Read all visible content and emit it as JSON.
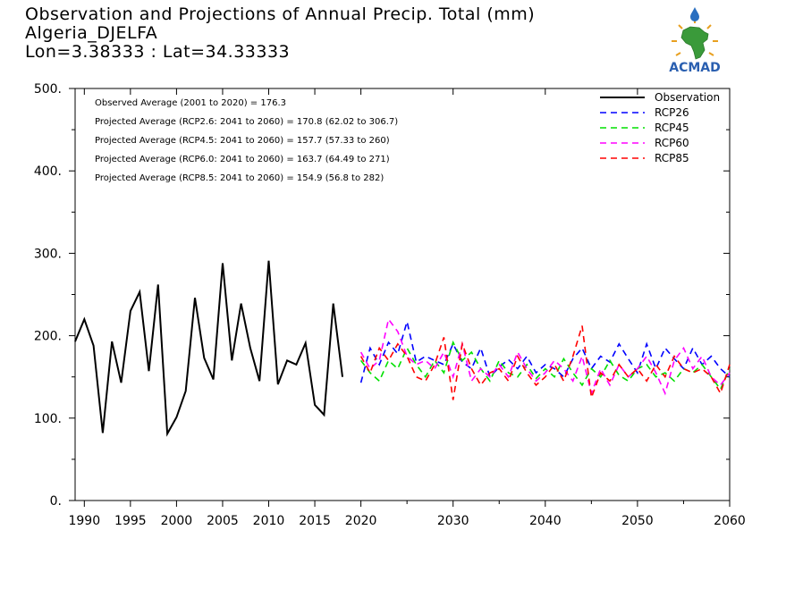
{
  "title": {
    "line1": "Observation and Projections of Annual Precip. Total (mm)",
    "line2": "Algeria_DJELFA",
    "line3": "Lon=3.38333 : Lat=34.33333"
  },
  "logo": {
    "text": "ACMAD"
  },
  "colors": {
    "Observation": "#000000",
    "RCP26": "#0000ff",
    "RCP45": "#00e000",
    "RCP60": "#ff00ff",
    "RCP85": "#ff0000"
  },
  "chart_data": {
    "type": "line",
    "xlim": [
      1989,
      2060
    ],
    "ylim": [
      0,
      500
    ],
    "x_ticks": [
      1990,
      1995,
      2000,
      2005,
      2010,
      2015,
      2020,
      2030,
      2040,
      2050,
      2060
    ],
    "y_ticks": [
      0,
      100,
      200,
      300,
      400,
      500
    ],
    "y_tick_labels": [
      "0.",
      "100.",
      "200.",
      "300.",
      "400.",
      "500."
    ],
    "annotations": [
      "Observed Average (2001 to 2020) = 176.3",
      "Projected Average (RCP2.6: 2041 to 2060) = 170.8 (62.02 to 306.7)",
      "Projected Average (RCP4.5: 2041 to 2060) = 157.7 (57.33 to 260)",
      "Projected Average (RCP6.0: 2041 to 2060) = 163.7 (64.49 to 271)",
      "Projected Average (RCP8.5: 2041 to 2060) = 154.9 (56.8 to 282)"
    ],
    "legend_position": "top-right",
    "series": [
      {
        "name": "Observation",
        "style": "solid",
        "x": [
          1989,
          1990,
          1991,
          1992,
          1993,
          1994,
          1995,
          1996,
          1997,
          1998,
          1999,
          2000,
          2001,
          2002,
          2003,
          2004,
          2005,
          2006,
          2007,
          2008,
          2009,
          2010,
          2011,
          2012,
          2013,
          2014,
          2015,
          2016,
          2017,
          2018
        ],
        "values": [
          193,
          220,
          188,
          82,
          193,
          143,
          230,
          253,
          157,
          262,
          81,
          101,
          133,
          246,
          173,
          147,
          288,
          170,
          239,
          185,
          145,
          291,
          141,
          170,
          165,
          191,
          116,
          104,
          239,
          150
        ]
      },
      {
        "name": "RCP26",
        "style": "dashed",
        "x": [
          2020,
          2021,
          2022,
          2023,
          2024,
          2025,
          2026,
          2027,
          2028,
          2029,
          2030,
          2031,
          2032,
          2033,
          2034,
          2035,
          2036,
          2037,
          2038,
          2039,
          2040,
          2041,
          2042,
          2043,
          2044,
          2045,
          2046,
          2047,
          2048,
          2049,
          2050,
          2051,
          2052,
          2053,
          2054,
          2055,
          2056,
          2057,
          2058,
          2059,
          2060
        ],
        "values": [
          143,
          185,
          165,
          192,
          178,
          217,
          168,
          175,
          170,
          165,
          190,
          168,
          160,
          185,
          150,
          162,
          171,
          160,
          175,
          155,
          165,
          160,
          150,
          172,
          185,
          160,
          175,
          168,
          190,
          172,
          155,
          190,
          160,
          185,
          172,
          160,
          185,
          165,
          175,
          160,
          150
        ]
      },
      {
        "name": "RCP45",
        "style": "dashed",
        "x": [
          2020,
          2021,
          2022,
          2023,
          2024,
          2025,
          2026,
          2027,
          2028,
          2029,
          2030,
          2031,
          2032,
          2033,
          2034,
          2035,
          2036,
          2037,
          2038,
          2039,
          2040,
          2041,
          2042,
          2043,
          2044,
          2045,
          2046,
          2047,
          2048,
          2049,
          2050,
          2051,
          2052,
          2053,
          2054,
          2055,
          2056,
          2057,
          2058,
          2059,
          2060
        ],
        "values": [
          170,
          155,
          145,
          170,
          160,
          185,
          165,
          150,
          170,
          155,
          192,
          170,
          180,
          160,
          145,
          170,
          155,
          150,
          165,
          148,
          160,
          150,
          172,
          155,
          140,
          160,
          150,
          170,
          152,
          145,
          160,
          165,
          150,
          155,
          145,
          160,
          155,
          165,
          150,
          135,
          160
        ]
      },
      {
        "name": "RCP60",
        "style": "dashed",
        "x": [
          2020,
          2021,
          2022,
          2023,
          2024,
          2025,
          2026,
          2027,
          2028,
          2029,
          2030,
          2031,
          2032,
          2033,
          2034,
          2035,
          2036,
          2037,
          2038,
          2039,
          2040,
          2041,
          2042,
          2043,
          2044,
          2045,
          2046,
          2047,
          2048,
          2049,
          2050,
          2051,
          2052,
          2053,
          2054,
          2055,
          2056,
          2057,
          2058,
          2059,
          2060
        ],
        "values": [
          180,
          160,
          170,
          220,
          205,
          175,
          165,
          170,
          160,
          180,
          150,
          190,
          145,
          160,
          150,
          165,
          150,
          180,
          160,
          145,
          155,
          170,
          160,
          145,
          175,
          130,
          160,
          140,
          165,
          150,
          160,
          175,
          155,
          130,
          170,
          185,
          160,
          175,
          150,
          140,
          155
        ]
      },
      {
        "name": "RCP85",
        "style": "dashed",
        "x": [
          2020,
          2021,
          2022,
          2023,
          2024,
          2025,
          2026,
          2027,
          2028,
          2029,
          2030,
          2031,
          2032,
          2033,
          2034,
          2035,
          2036,
          2037,
          2038,
          2039,
          2040,
          2041,
          2042,
          2043,
          2044,
          2045,
          2046,
          2047,
          2048,
          2049,
          2050,
          2051,
          2052,
          2053,
          2054,
          2055,
          2056,
          2057,
          2058,
          2059,
          2060
        ],
        "values": [
          175,
          155,
          185,
          170,
          190,
          175,
          150,
          145,
          165,
          198,
          122,
          190,
          160,
          140,
          155,
          160,
          145,
          175,
          155,
          140,
          150,
          165,
          145,
          175,
          212,
          125,
          155,
          145,
          165,
          150,
          160,
          145,
          165,
          150,
          175,
          160,
          155,
          160,
          150,
          130,
          165
        ]
      }
    ]
  }
}
